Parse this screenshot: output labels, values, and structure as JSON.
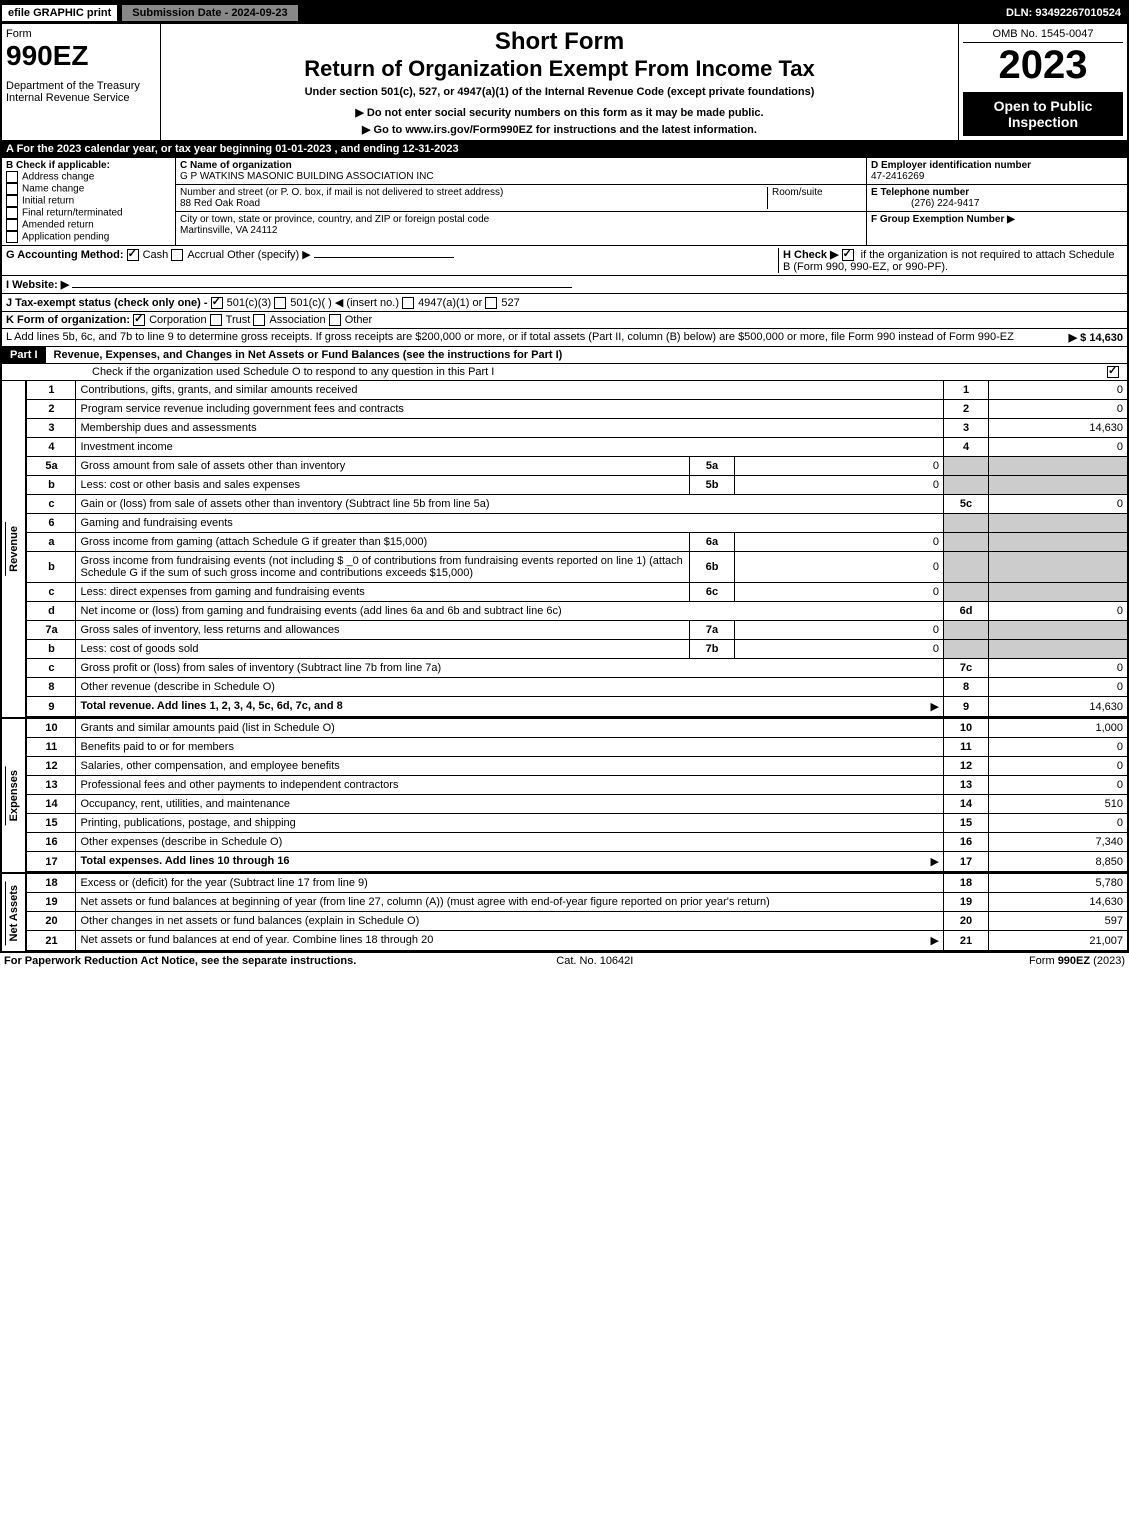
{
  "top_bar": {
    "efile": "efile GRAPHIC print",
    "submission": "Submission Date - 2024-09-23",
    "dln": "DLN: 93492267010524"
  },
  "header": {
    "form_label": "Form",
    "form_number": "990EZ",
    "dept1": "Department of the Treasury",
    "dept2": "Internal Revenue Service",
    "short_form": "Short Form",
    "title": "Return of Organization Exempt From Income Tax",
    "subtitle": "Under section 501(c), 527, or 4947(a)(1) of the Internal Revenue Code (except private foundations)",
    "warning": "▶ Do not enter social security numbers on this form as it may be made public.",
    "goto": "▶ Go to www.irs.gov/Form990EZ for instructions and the latest information.",
    "omb": "OMB No. 1545-0047",
    "year": "2023",
    "open_to": "Open to Public Inspection"
  },
  "line_a": "A  For the 2023 calendar year, or tax year beginning 01-01-2023 , and ending 12-31-2023",
  "box_b": {
    "label": "B  Check if applicable:",
    "items": [
      "Address change",
      "Name change",
      "Initial return",
      "Final return/terminated",
      "Amended return",
      "Application pending"
    ]
  },
  "box_c": {
    "name_label": "C Name of organization",
    "name": "G P WATKINS MASONIC BUILDING ASSOCIATION INC",
    "street_label": "Number and street (or P. O. box, if mail is not delivered to street address)",
    "room_label": "Room/suite",
    "street": "88 Red Oak Road",
    "city_label": "City or town, state or province, country, and ZIP or foreign postal code",
    "city": "Martinsville, VA  24112"
  },
  "box_d": {
    "label": "D Employer identification number",
    "value": "47-2416269"
  },
  "box_e": {
    "label": "E Telephone number",
    "value": "(276) 224-9417"
  },
  "box_f": {
    "label": "F Group Exemption Number  ▶"
  },
  "line_g": "G Accounting Method:",
  "g_cash": "Cash",
  "g_accrual": "Accrual",
  "g_other": "Other (specify) ▶",
  "line_h": "H  Check ▶",
  "line_h_rest": "if the organization is not required to attach Schedule B (Form 990, 990-EZ, or 990-PF).",
  "line_i": "I Website: ▶",
  "line_j": "J Tax-exempt status (check only one) -",
  "j_501c3": "501(c)(3)",
  "j_501c": "501(c)(  ) ◀ (insert no.)",
  "j_4947": "4947(a)(1) or",
  "j_527": "527",
  "line_k": "K Form of organization:",
  "k_corp": "Corporation",
  "k_trust": "Trust",
  "k_assoc": "Association",
  "k_other": "Other",
  "line_l": "L Add lines 5b, 6c, and 7b to line 9 to determine gross receipts. If gross receipts are $200,000 or more, or if total assets (Part II, column (B) below) are $500,000 or more, file Form 990 instead of Form 990-EZ",
  "line_l_amount": "▶ $ 14,630",
  "part1": {
    "label": "Part I",
    "title": "Revenue, Expenses, and Changes in Net Assets or Fund Balances (see the instructions for Part I)",
    "check_note": "Check if the organization used Schedule O to respond to any question in this Part I"
  },
  "side_labels": {
    "revenue": "Revenue",
    "expenses": "Expenses",
    "net_assets": "Net Assets"
  },
  "lines": [
    {
      "n": "1",
      "desc": "Contributions, gifts, grants, and similar amounts received",
      "box": "1",
      "amt": "0"
    },
    {
      "n": "2",
      "desc": "Program service revenue including government fees and contracts",
      "box": "2",
      "amt": "0"
    },
    {
      "n": "3",
      "desc": "Membership dues and assessments",
      "box": "3",
      "amt": "14,630"
    },
    {
      "n": "4",
      "desc": "Investment income",
      "box": "4",
      "amt": "0"
    },
    {
      "n": "5a",
      "desc": "Gross amount from sale of assets other than inventory",
      "sub": "5a",
      "subval": "0"
    },
    {
      "n": "b",
      "desc": "Less: cost or other basis and sales expenses",
      "sub": "5b",
      "subval": "0"
    },
    {
      "n": "c",
      "desc": "Gain or (loss) from sale of assets other than inventory (Subtract line 5b from line 5a)",
      "box": "5c",
      "amt": "0"
    },
    {
      "n": "6",
      "desc": "Gaming and fundraising events"
    },
    {
      "n": "a",
      "desc": "Gross income from gaming (attach Schedule G if greater than $15,000)",
      "sub": "6a",
      "subval": "0"
    },
    {
      "n": "b",
      "desc": "Gross income from fundraising events (not including $ _0   of contributions from fundraising events reported on line 1) (attach Schedule G if the sum of such gross income and contributions exceeds $15,000)",
      "sub": "6b",
      "subval": "0"
    },
    {
      "n": "c",
      "desc": "Less: direct expenses from gaming and fundraising events",
      "sub": "6c",
      "subval": "0"
    },
    {
      "n": "d",
      "desc": "Net income or (loss) from gaming and fundraising events (add lines 6a and 6b and subtract line 6c)",
      "box": "6d",
      "amt": "0"
    },
    {
      "n": "7a",
      "desc": "Gross sales of inventory, less returns and allowances",
      "sub": "7a",
      "subval": "0"
    },
    {
      "n": "b",
      "desc": "Less: cost of goods sold",
      "sub": "7b",
      "subval": "0"
    },
    {
      "n": "c",
      "desc": "Gross profit or (loss) from sales of inventory (Subtract line 7b from line 7a)",
      "box": "7c",
      "amt": "0"
    },
    {
      "n": "8",
      "desc": "Other revenue (describe in Schedule O)",
      "box": "8",
      "amt": "0"
    },
    {
      "n": "9",
      "desc": "Total revenue. Add lines 1, 2, 3, 4, 5c, 6d, 7c, and 8",
      "box": "9",
      "amt": "14,630",
      "bold": true,
      "arrow": true
    }
  ],
  "expense_lines": [
    {
      "n": "10",
      "desc": "Grants and similar amounts paid (list in Schedule O)",
      "box": "10",
      "amt": "1,000"
    },
    {
      "n": "11",
      "desc": "Benefits paid to or for members",
      "box": "11",
      "amt": "0"
    },
    {
      "n": "12",
      "desc": "Salaries, other compensation, and employee benefits",
      "box": "12",
      "amt": "0"
    },
    {
      "n": "13",
      "desc": "Professional fees and other payments to independent contractors",
      "box": "13",
      "amt": "0"
    },
    {
      "n": "14",
      "desc": "Occupancy, rent, utilities, and maintenance",
      "box": "14",
      "amt": "510"
    },
    {
      "n": "15",
      "desc": "Printing, publications, postage, and shipping",
      "box": "15",
      "amt": "0"
    },
    {
      "n": "16",
      "desc": "Other expenses (describe in Schedule O)",
      "box": "16",
      "amt": "7,340"
    },
    {
      "n": "17",
      "desc": "Total expenses. Add lines 10 through 16",
      "box": "17",
      "amt": "8,850",
      "bold": true,
      "arrow": true
    }
  ],
  "net_lines": [
    {
      "n": "18",
      "desc": "Excess or (deficit) for the year (Subtract line 17 from line 9)",
      "box": "18",
      "amt": "5,780"
    },
    {
      "n": "19",
      "desc": "Net assets or fund balances at beginning of year (from line 27, column (A)) (must agree with end-of-year figure reported on prior year's return)",
      "box": "19",
      "amt": "14,630"
    },
    {
      "n": "20",
      "desc": "Other changes in net assets or fund balances (explain in Schedule O)",
      "box": "20",
      "amt": "597"
    },
    {
      "n": "21",
      "desc": "Net assets or fund balances at end of year. Combine lines 18 through 20",
      "box": "21",
      "amt": "21,007",
      "arrow": true
    }
  ],
  "footer": {
    "left": "For Paperwork Reduction Act Notice, see the separate instructions.",
    "center": "Cat. No. 10642I",
    "right": "Form 990-EZ (2023)"
  },
  "colors": {
    "black": "#000000",
    "white": "#ffffff",
    "gray_header": "#888888",
    "gray_cell": "#cccccc"
  }
}
